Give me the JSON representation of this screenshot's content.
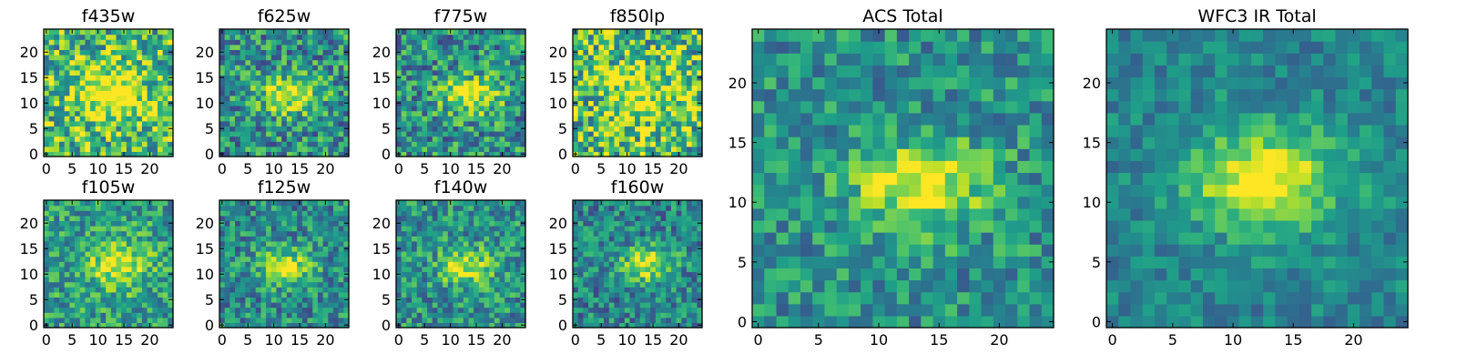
{
  "figure": {
    "colormap": "viridis",
    "colormap_stops": [
      "#440154",
      "#482878",
      "#3e4989",
      "#31688e",
      "#26828e",
      "#1f9e89",
      "#35b779",
      "#6ece58",
      "#b5de2b",
      "#fde725"
    ]
  },
  "chart_data": [
    {
      "type": "heatmap",
      "title": "f435w",
      "grid_size": 25,
      "xlim": [
        0,
        24
      ],
      "ylim": [
        0,
        24
      ],
      "x_ticks": [
        0,
        5,
        10,
        15,
        20
      ],
      "y_ticks": [
        0,
        5,
        10,
        15,
        20
      ],
      "x_tick_labels": [
        "0",
        "5",
        "10",
        "15",
        "20"
      ],
      "y_tick_labels": [
        "0",
        "5",
        "10",
        "15",
        "20"
      ],
      "center": [
        12.5,
        12
      ],
      "spread": [
        4.5,
        3.5
      ],
      "peak": 0.5,
      "background": 0.68,
      "noise": 0.35,
      "seed": 11
    },
    {
      "type": "heatmap",
      "title": "f625w",
      "grid_size": 25,
      "xlim": [
        0,
        24
      ],
      "ylim": [
        0,
        24
      ],
      "x_ticks": [
        0,
        5,
        10,
        15,
        20
      ],
      "y_ticks": [
        0,
        5,
        10,
        15,
        20
      ],
      "x_tick_labels": [
        "0",
        "5",
        "10",
        "15",
        "20"
      ],
      "y_tick_labels": [
        "0",
        "5",
        "10",
        "15",
        "20"
      ],
      "center": [
        13,
        11.5
      ],
      "spread": [
        4,
        2.5
      ],
      "peak": 0.5,
      "background": 0.5,
      "noise": 0.3,
      "seed": 23
    },
    {
      "type": "heatmap",
      "title": "f775w",
      "grid_size": 25,
      "xlim": [
        0,
        24
      ],
      "ylim": [
        0,
        24
      ],
      "x_ticks": [
        0,
        5,
        10,
        15,
        20
      ],
      "y_ticks": [
        0,
        5,
        10,
        15,
        20
      ],
      "x_tick_labels": [
        "0",
        "5",
        "10",
        "15",
        "20"
      ],
      "y_tick_labels": [
        "0",
        "5",
        "10",
        "15",
        "20"
      ],
      "center": [
        14,
        11.5
      ],
      "spread": [
        4,
        2.5
      ],
      "peak": 0.5,
      "background": 0.5,
      "noise": 0.3,
      "seed": 37
    },
    {
      "type": "heatmap",
      "title": "f850lp",
      "grid_size": 25,
      "xlim": [
        0,
        24
      ],
      "ylim": [
        0,
        24
      ],
      "x_ticks": [
        0,
        5,
        10,
        15,
        20
      ],
      "y_ticks": [
        0,
        5,
        10,
        15,
        20
      ],
      "x_tick_labels": [
        "0",
        "5",
        "10",
        "15",
        "20"
      ],
      "y_tick_labels": [
        "0",
        "5",
        "10",
        "15",
        "20"
      ],
      "center": [
        13,
        11.5
      ],
      "spread": [
        5,
        4
      ],
      "peak": 0.3,
      "background": 0.68,
      "noise": 0.38,
      "seed": 41
    },
    {
      "type": "heatmap",
      "title": "f105w",
      "grid_size": 25,
      "xlim": [
        0,
        24
      ],
      "ylim": [
        0,
        24
      ],
      "x_ticks": [
        0,
        5,
        10,
        15,
        20
      ],
      "y_ticks": [
        0,
        5,
        10,
        15,
        20
      ],
      "x_tick_labels": [
        "0",
        "5",
        "10",
        "15",
        "20"
      ],
      "y_tick_labels": [
        "0",
        "5",
        "10",
        "15",
        "20"
      ],
      "center": [
        14,
        12
      ],
      "spread": [
        4,
        3.5
      ],
      "peak": 0.4,
      "background": 0.55,
      "noise": 0.25,
      "seed": 53
    },
    {
      "type": "heatmap",
      "title": "f125w",
      "grid_size": 25,
      "xlim": [
        0,
        24
      ],
      "ylim": [
        0,
        24
      ],
      "x_ticks": [
        0,
        5,
        10,
        15,
        20
      ],
      "y_ticks": [
        0,
        5,
        10,
        15,
        20
      ],
      "x_tick_labels": [
        "0",
        "5",
        "10",
        "15",
        "20"
      ],
      "y_tick_labels": [
        "0",
        "5",
        "10",
        "15",
        "20"
      ],
      "center": [
        12.5,
        11.5
      ],
      "spread": [
        3.5,
        2.5
      ],
      "peak": 0.45,
      "background": 0.48,
      "noise": 0.25,
      "seed": 67
    },
    {
      "type": "heatmap",
      "title": "f140w",
      "grid_size": 25,
      "xlim": [
        0,
        24
      ],
      "ylim": [
        0,
        24
      ],
      "x_ticks": [
        0,
        5,
        10,
        15,
        20
      ],
      "y_ticks": [
        0,
        5,
        10,
        15,
        20
      ],
      "x_tick_labels": [
        "0",
        "5",
        "10",
        "15",
        "20"
      ],
      "y_tick_labels": [
        "0",
        "5",
        "10",
        "15",
        "20"
      ],
      "center": [
        13,
        11.5
      ],
      "spread": [
        3.5,
        2.5
      ],
      "peak": 0.45,
      "background": 0.5,
      "noise": 0.25,
      "seed": 79
    },
    {
      "type": "heatmap",
      "title": "f160w",
      "grid_size": 25,
      "xlim": [
        0,
        24
      ],
      "ylim": [
        0,
        24
      ],
      "x_ticks": [
        0,
        5,
        10,
        15,
        20
      ],
      "y_ticks": [
        0,
        5,
        10,
        15,
        20
      ],
      "x_tick_labels": [
        "0",
        "5",
        "10",
        "15",
        "20"
      ],
      "y_tick_labels": [
        "0",
        "5",
        "10",
        "15",
        "20"
      ],
      "center": [
        14,
        12
      ],
      "spread": [
        3.5,
        2.5
      ],
      "peak": 0.5,
      "background": 0.45,
      "noise": 0.25,
      "seed": 83
    },
    {
      "type": "heatmap",
      "title": "ACS Total",
      "grid_size": 25,
      "xlim": [
        0,
        24
      ],
      "ylim": [
        0,
        24
      ],
      "x_ticks": [
        0,
        5,
        10,
        15,
        20
      ],
      "y_ticks": [
        0,
        5,
        10,
        15,
        20
      ],
      "x_tick_labels": [
        "0",
        "5",
        "10",
        "15",
        "20"
      ],
      "y_tick_labels": [
        "0",
        "5",
        "10",
        "15",
        "20"
      ],
      "center": [
        13.5,
        11.5
      ],
      "spread": [
        4,
        2.5
      ],
      "peak": 0.5,
      "background": 0.5,
      "noise": 0.22,
      "seed": 97
    },
    {
      "type": "heatmap",
      "title": "WFC3 IR Total",
      "grid_size": 25,
      "xlim": [
        0,
        24
      ],
      "ylim": [
        0,
        24
      ],
      "x_ticks": [
        0,
        5,
        10,
        15,
        20
      ],
      "y_ticks": [
        0,
        5,
        10,
        15,
        20
      ],
      "x_tick_labels": [
        "0",
        "5",
        "10",
        "15",
        "20"
      ],
      "y_tick_labels": [
        "0",
        "5",
        "10",
        "15",
        "20"
      ],
      "center": [
        12.5,
        12
      ],
      "spread": [
        4.5,
        3
      ],
      "peak": 0.55,
      "background": 0.45,
      "noise": 0.15,
      "seed": 101
    }
  ]
}
